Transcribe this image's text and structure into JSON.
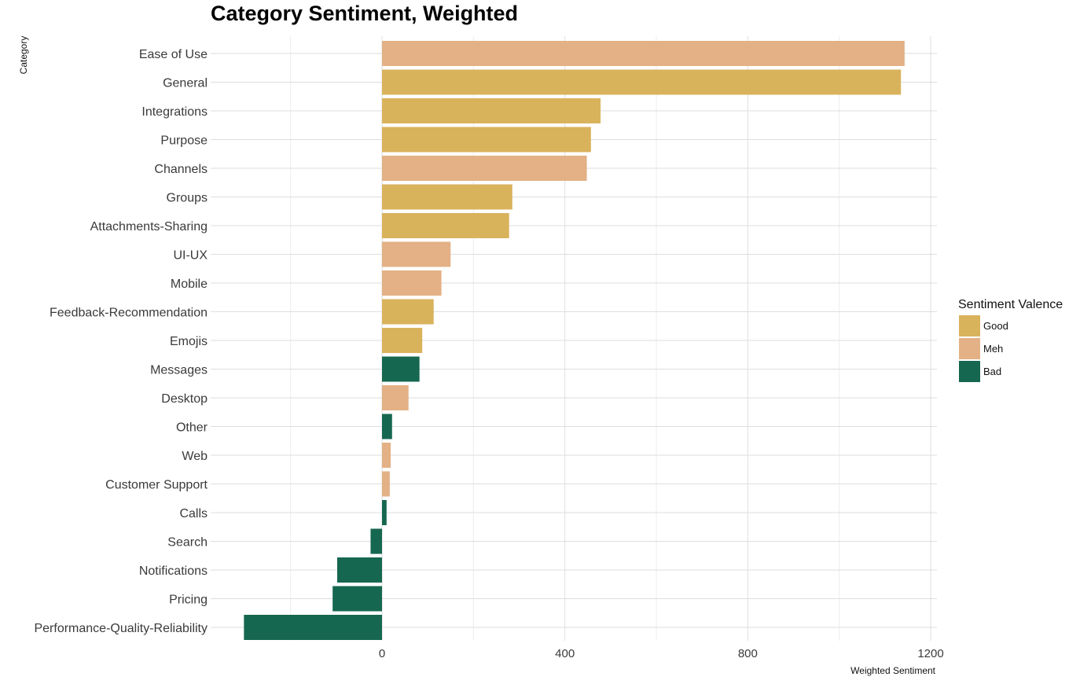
{
  "chart_data": {
    "type": "bar",
    "orientation": "horizontal",
    "title": "Category Sentiment, Weighted",
    "xlabel": "Weighted Sentiment",
    "ylabel": "Category",
    "xlim": [
      -300,
      1200
    ],
    "x_ticks": [
      0,
      400,
      800,
      1200
    ],
    "grid": true,
    "legend": {
      "title": "Sentiment Valence",
      "placement": "right",
      "entries": [
        {
          "label": "Good",
          "color": "#d9b25c"
        },
        {
          "label": "Meh",
          "color": "#e3b185"
        },
        {
          "label": "Bad",
          "color": "#16674f"
        }
      ]
    },
    "categories": [
      "Ease of Use",
      "General",
      "Integrations",
      "Purpose",
      "Channels",
      "Groups",
      "Attachments-Sharing",
      "UI-UX",
      "Mobile",
      "Feedback-Recommendation",
      "Emojis",
      "Messages",
      "Desktop",
      "Other",
      "Web",
      "Customer Support",
      "Calls",
      "Search",
      "Notifications",
      "Pricing",
      "Performance-Quality-Reliability"
    ],
    "values": [
      1143,
      1135,
      478,
      457,
      448,
      285,
      278,
      150,
      130,
      113,
      88,
      82,
      58,
      22,
      19,
      17,
      10,
      -25,
      -98,
      -108,
      -302
    ],
    "valence": [
      "Meh",
      "Good",
      "Good",
      "Good",
      "Meh",
      "Good",
      "Good",
      "Meh",
      "Meh",
      "Good",
      "Good",
      "Bad",
      "Meh",
      "Bad",
      "Meh",
      "Meh",
      "Bad",
      "Bad",
      "Bad",
      "Bad",
      "Bad"
    ]
  }
}
